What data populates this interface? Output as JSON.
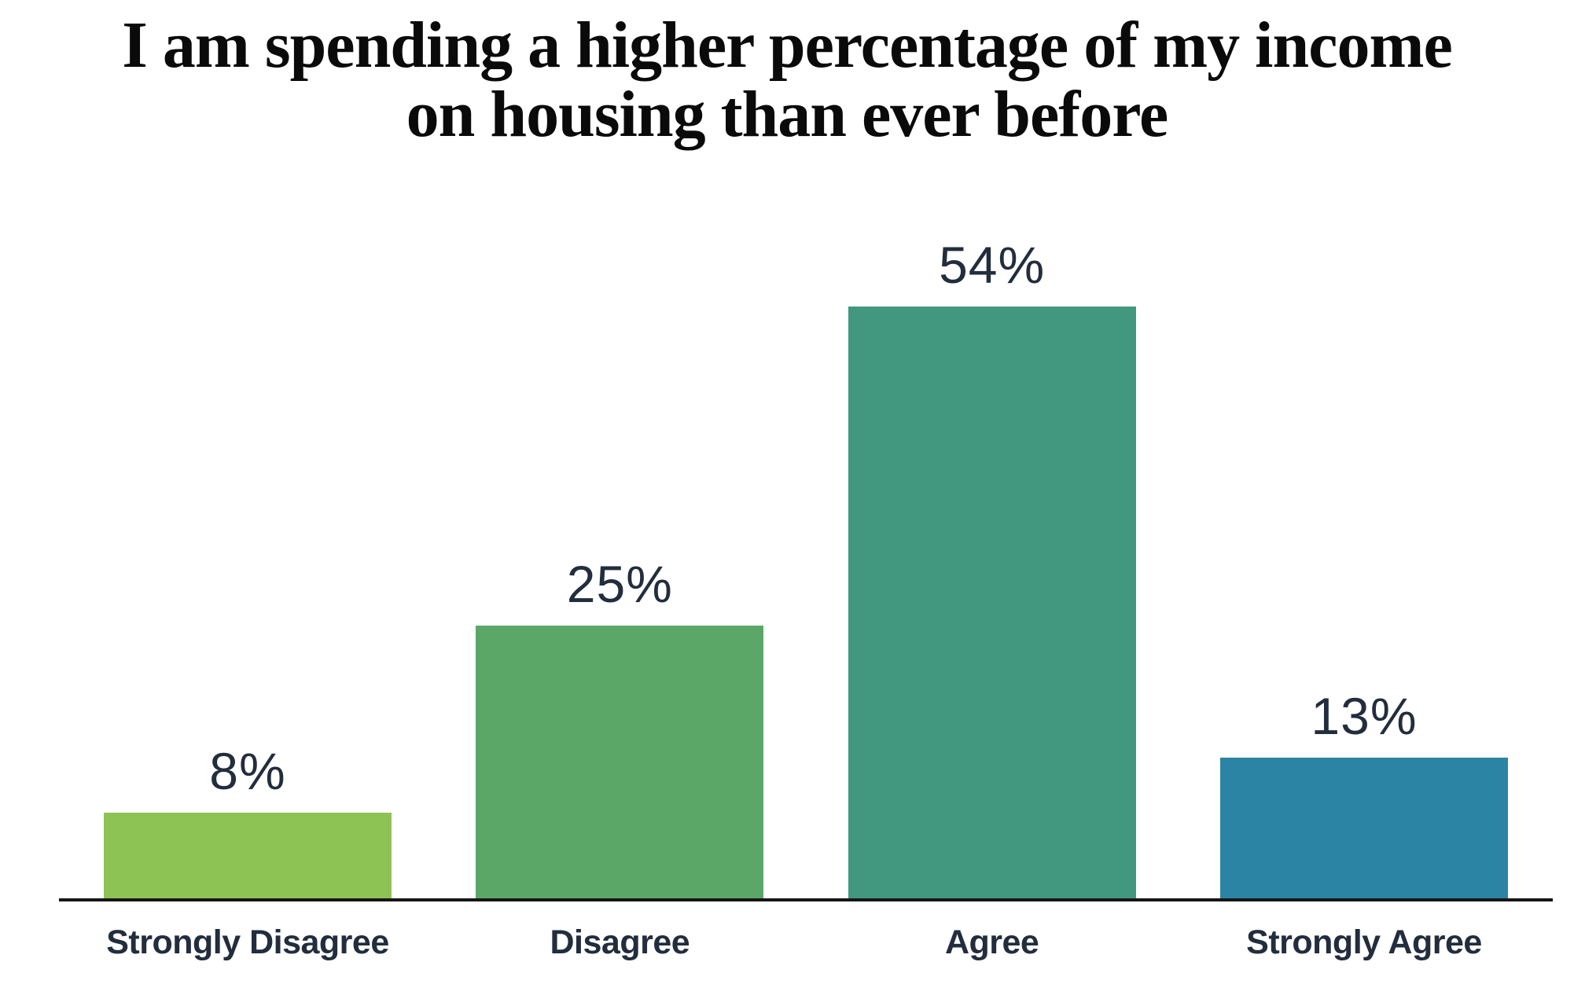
{
  "title_lines": [
    "I am spending a higher percentage of my income",
    "on housing than ever before"
  ],
  "chart_data": {
    "type": "bar",
    "title": "I am spending a higher percentage of my income on housing than ever before",
    "categories": [
      "Strongly Disagree",
      "Disagree",
      "Agree",
      "Strongly Agree"
    ],
    "values": [
      8,
      25,
      54,
      13
    ],
    "value_labels": [
      "8%",
      "25%",
      "54%",
      "13%"
    ],
    "bar_colors": [
      "#8DC355",
      "#5BA768",
      "#42987F",
      "#2B84A3"
    ],
    "xlabel": "",
    "ylabel": "",
    "ylim": [
      0,
      60
    ],
    "grid": false,
    "legend": "none",
    "value_label_position": "above-bar",
    "label_color": "#222D3D",
    "axis_color": "#161616",
    "title_color": "#0A0A0A"
  }
}
